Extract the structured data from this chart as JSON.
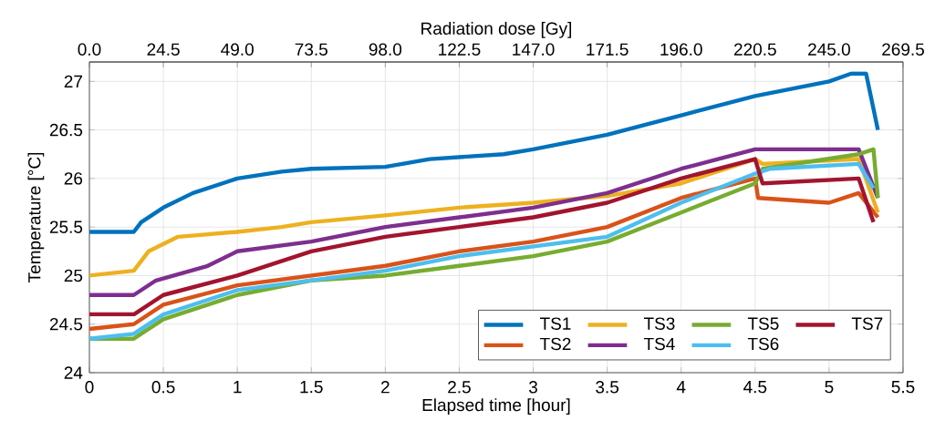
{
  "chart_data": {
    "type": "line",
    "xlabel": "Elapsed time [hour]",
    "ylabel": "Temperature [°C]",
    "x2label": "Radiation dose [Gy]",
    "xlim": [
      0,
      5.5
    ],
    "xticks": [
      0,
      0.5,
      1,
      1.5,
      2,
      2.5,
      3,
      3.5,
      4,
      4.5,
      5,
      5.5
    ],
    "x2lim": [
      0,
      269.5
    ],
    "x2ticks": [
      {
        "value": 0,
        "label": "0.0"
      },
      24.5,
      {
        "value": 49,
        "label": "49.0"
      },
      73.5,
      {
        "value": 98,
        "label": "98.0"
      },
      122.5,
      {
        "value": 147,
        "label": "147.0"
      },
      171.5,
      {
        "value": 196,
        "label": "196.0"
      },
      220.5,
      {
        "value": 245,
        "label": "245.0"
      },
      269.5
    ],
    "ylim": [
      24,
      27.2
    ],
    "yticks": [
      24,
      24.5,
      25,
      25.5,
      26,
      26.5,
      27
    ],
    "grid": true,
    "legend": "bottom right",
    "series": [
      {
        "name": "TS1",
        "color": "#0072bd",
        "x": [
          0,
          0.3,
          0.35,
          0.5,
          0.7,
          1.0,
          1.3,
          1.5,
          2.0,
          2.3,
          2.8,
          3.0,
          3.5,
          4.0,
          4.5,
          5.0,
          5.15,
          5.25,
          5.33
        ],
        "values": [
          25.45,
          25.45,
          25.55,
          25.7,
          25.85,
          26.0,
          26.07,
          26.1,
          26.12,
          26.2,
          26.25,
          26.3,
          26.45,
          26.65,
          26.85,
          27.0,
          27.08,
          27.08,
          26.5
        ]
      },
      {
        "name": "TS2",
        "color": "#d95319",
        "x": [
          0,
          0.3,
          0.5,
          1.0,
          1.5,
          2.0,
          2.5,
          3.0,
          3.5,
          4.0,
          4.5,
          4.52,
          5.0,
          5.2,
          5.33
        ],
        "values": [
          24.45,
          24.5,
          24.7,
          24.9,
          25.0,
          25.1,
          25.25,
          25.35,
          25.5,
          25.8,
          26.0,
          25.8,
          25.75,
          25.85,
          25.6
        ]
      },
      {
        "name": "TS3",
        "color": "#edb120",
        "x": [
          0,
          0.3,
          0.4,
          0.6,
          1.0,
          1.3,
          1.5,
          2.0,
          2.5,
          3.0,
          3.5,
          4.0,
          4.5,
          4.55,
          5.2,
          5.33
        ],
        "values": [
          25.0,
          25.05,
          25.25,
          25.4,
          25.45,
          25.5,
          25.55,
          25.62,
          25.7,
          25.75,
          25.82,
          25.95,
          26.2,
          26.15,
          26.2,
          25.65
        ]
      },
      {
        "name": "TS4",
        "color": "#7e2f8e",
        "x": [
          0,
          0.3,
          0.45,
          0.8,
          1.0,
          1.5,
          2.0,
          2.5,
          3.0,
          3.5,
          4.0,
          4.5,
          5.2,
          5.33
        ],
        "values": [
          24.8,
          24.8,
          24.95,
          25.1,
          25.25,
          25.35,
          25.5,
          25.6,
          25.7,
          25.85,
          26.1,
          26.3,
          26.3,
          25.8
        ]
      },
      {
        "name": "TS5",
        "color": "#77ac30",
        "x": [
          0,
          0.3,
          0.5,
          1.0,
          1.5,
          2.0,
          2.5,
          3.0,
          3.5,
          4.0,
          4.5,
          4.55,
          5.2,
          5.3,
          5.33
        ],
        "values": [
          24.35,
          24.35,
          24.55,
          24.8,
          24.95,
          25.0,
          25.1,
          25.2,
          25.35,
          25.65,
          25.95,
          26.1,
          26.25,
          26.3,
          25.8
        ]
      },
      {
        "name": "TS6",
        "color": "#4dbeee",
        "x": [
          0,
          0.3,
          0.5,
          1.0,
          1.5,
          2.0,
          2.5,
          3.0,
          3.5,
          4.0,
          4.5,
          4.6,
          5.2,
          5.3
        ],
        "values": [
          24.35,
          24.4,
          24.6,
          24.85,
          24.95,
          25.05,
          25.2,
          25.3,
          25.4,
          25.75,
          26.05,
          26.1,
          26.15,
          25.9
        ]
      },
      {
        "name": "TS7",
        "color": "#a2142f",
        "x": [
          0,
          0.3,
          0.5,
          1.0,
          1.5,
          2.0,
          2.5,
          3.0,
          3.5,
          4.0,
          4.5,
          4.55,
          5.2,
          5.3
        ],
        "values": [
          24.6,
          24.6,
          24.8,
          25.0,
          25.25,
          25.4,
          25.5,
          25.6,
          25.75,
          26.0,
          26.2,
          25.95,
          26.0,
          25.55
        ]
      }
    ]
  }
}
